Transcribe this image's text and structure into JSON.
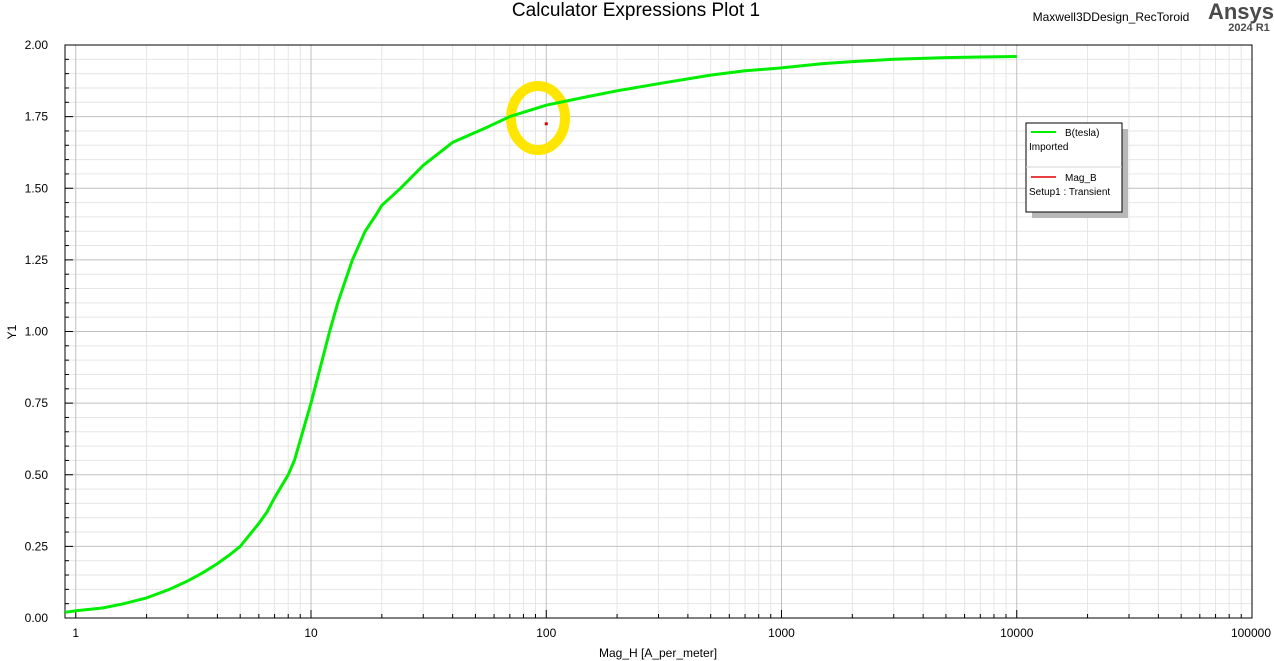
{
  "header": {
    "title": "Calculator Expressions Plot 1",
    "design_name": "Maxwell3DDesign_RecToroid",
    "brand": "Ansys",
    "version": "2024 R1"
  },
  "colors": {
    "series_b": "#00ee00",
    "series_mag": "#e00000",
    "highlight": "#ffe600",
    "grid_major": "#c0c0c0",
    "grid_minor": "#e6e6e6"
  },
  "chart_data": {
    "type": "line",
    "title": "Calculator Expressions Plot 1",
    "xlabel": "Mag_H [A_per_meter]",
    "ylabel": "Y1",
    "xscale": "log",
    "xlim": [
      0.9,
      100000
    ],
    "ylim": [
      0,
      2
    ],
    "x_ticks": [
      1,
      10,
      100,
      1000,
      10000,
      100000
    ],
    "x_tick_labels": [
      "1",
      "10",
      "100",
      "1000",
      "10000",
      "100000"
    ],
    "y_ticks": [
      0,
      0.25,
      0.5,
      0.75,
      1.0,
      1.25,
      1.5,
      1.75,
      2.0
    ],
    "y_tick_labels": [
      "0.00",
      "0.25",
      "0.50",
      "0.75",
      "1.00",
      "1.25",
      "1.50",
      "1.75",
      "2.00"
    ],
    "grid": true,
    "legend_position": "right",
    "series": [
      {
        "name": "B(tesla)",
        "subtitle": "Imported",
        "x": [
          0.9,
          1,
          1.3,
          1.6,
          2,
          2.5,
          3,
          3.5,
          4,
          4.5,
          5,
          6,
          6.5,
          7,
          8,
          8.5,
          9,
          10,
          11,
          12,
          13,
          15,
          17,
          19,
          20,
          24,
          30,
          40,
          55,
          70,
          100,
          150,
          200,
          300,
          500,
          700,
          1000,
          1500,
          2000,
          3000,
          5000,
          7000,
          10000
        ],
        "y": [
          0.02,
          0.025,
          0.035,
          0.05,
          0.07,
          0.1,
          0.13,
          0.16,
          0.19,
          0.22,
          0.25,
          0.33,
          0.37,
          0.42,
          0.5,
          0.55,
          0.62,
          0.75,
          0.88,
          1.0,
          1.1,
          1.25,
          1.35,
          1.41,
          1.44,
          1.5,
          1.58,
          1.66,
          1.71,
          1.75,
          1.79,
          1.82,
          1.84,
          1.865,
          1.895,
          1.91,
          1.92,
          1.935,
          1.942,
          1.95,
          1.956,
          1.958,
          1.96
        ]
      },
      {
        "name": "Mag_B",
        "subtitle": "Setup1 : Transient",
        "x": [
          100
        ],
        "y": [
          1.725
        ]
      }
    ]
  }
}
